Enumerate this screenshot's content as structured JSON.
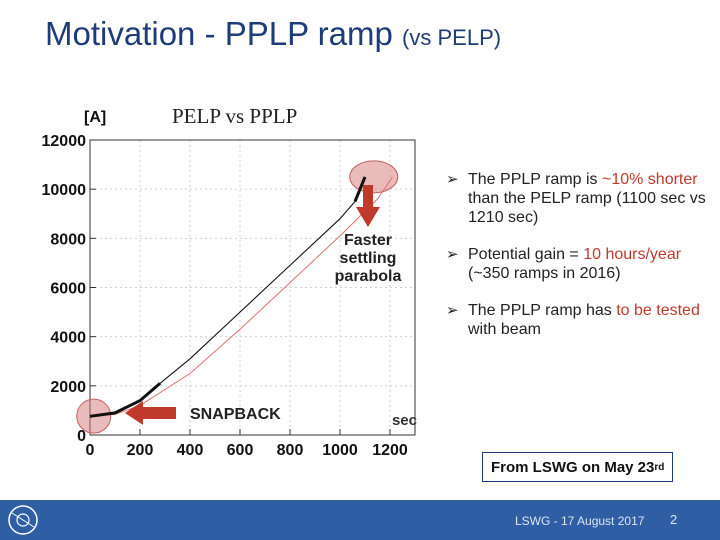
{
  "title": {
    "main": "Motivation - PPLP ramp",
    "sub": "(vs PELP)"
  },
  "chart_data": {
    "type": "line",
    "title": "PELP vs PPLP",
    "ylabel": "[A]",
    "xlabel": "sec",
    "xlim": [
      0,
      1300
    ],
    "ylim": [
      0,
      12000
    ],
    "xticks": [
      0,
      200,
      400,
      600,
      800,
      1000,
      1200
    ],
    "yticks": [
      0,
      2000,
      4000,
      6000,
      8000,
      10000,
      12000
    ],
    "series": [
      {
        "name": "PELP",
        "color": "#e07070",
        "x": [
          0,
          100,
          200,
          400,
          600,
          800,
          1000,
          1150,
          1210
        ],
        "y": [
          760,
          840,
          1200,
          2500,
          4300,
          6200,
          8100,
          9600,
          10500
        ]
      },
      {
        "name": "PPLP",
        "color": "#111111",
        "x": [
          0,
          100,
          200,
          280,
          400,
          600,
          800,
          1000,
          1060,
          1100
        ],
        "y": [
          760,
          900,
          1400,
          2100,
          3100,
          5000,
          6900,
          8800,
          9500,
          10500
        ]
      }
    ],
    "annotations": {
      "faster": {
        "line1": "Faster",
        "line2": "settling",
        "line3": "parabola"
      },
      "snapback": "SNAPBACK"
    }
  },
  "bullets": [
    {
      "pre": "The PPLP ramp is ",
      "hl": "~10% shorter",
      "post": " than the PELP ramp (1100 sec vs 1210 sec)"
    },
    {
      "pre": "Potential gain = ",
      "hl": "10 hours/year",
      "post": " (~350 ramps in 2016)"
    },
    {
      "pre": "The PPLP ramp has ",
      "hl": "to be tested",
      "post": " with beam"
    }
  ],
  "source_note": {
    "text": "From LSWG on May 23",
    "sup": "rd"
  },
  "footer": {
    "text": "LSWG - 17 August 2017",
    "page": "2"
  },
  "colors": {
    "title": "#1f3c7a",
    "accent": "#c0392b",
    "footer_bg": "#2f5ea5"
  }
}
